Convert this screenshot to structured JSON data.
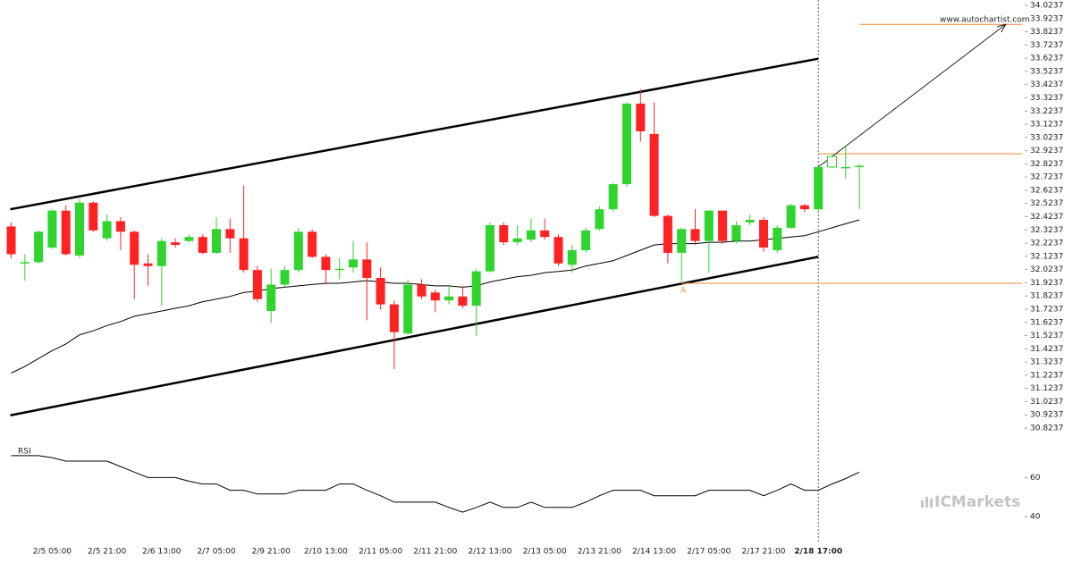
{
  "chart_data": {
    "type": "candlestick",
    "watermark": "www.autochartist.com",
    "brand": "ICMarkets",
    "up_color": "#2fd42f",
    "down_color": "#ff2222",
    "categories": [
      null,
      null,
      null,
      "2/5 05:00",
      null,
      null,
      null,
      "2/5 21:00",
      null,
      null,
      null,
      "2/6 13:00",
      null,
      null,
      null,
      "2/7 05:00",
      null,
      null,
      null,
      "2/9 21:00",
      null,
      null,
      null,
      "2/10 13:00",
      null,
      null,
      null,
      "2/11 05:00",
      null,
      null,
      null,
      "2/11 21:00",
      null,
      null,
      null,
      "2/12 13:00",
      null,
      null,
      null,
      "2/13 05:00",
      null,
      null,
      null,
      "2/13 21:00",
      null,
      null,
      null,
      "2/14 13:00",
      null,
      null,
      null,
      "2/17 05:00",
      null,
      null,
      null,
      "2/17 21:00",
      null,
      null,
      null,
      "2/18 17:00",
      null,
      null,
      null
    ],
    "current_index": 59,
    "open": [
      32.35,
      32.08,
      32.08,
      32.19,
      32.47,
      32.13,
      32.53,
      32.26,
      32.39,
      32.31,
      32.07,
      32.05,
      32.23,
      32.24,
      32.27,
      32.15,
      32.33,
      32.26,
      32.02,
      31.71,
      31.91,
      32.02,
      32.31,
      32.12,
      32.03,
      32.04,
      32.1,
      31.96,
      31.76,
      31.54,
      31.91,
      31.85,
      31.79,
      31.82,
      31.75,
      32.01,
      32.36,
      32.23,
      32.25,
      32.32,
      32.27,
      32.06,
      32.17,
      32.33,
      32.48,
      32.67,
      33.28,
      33.05,
      32.43,
      32.15,
      32.33,
      32.24,
      32.47,
      32.24,
      32.38,
      32.4,
      32.17,
      32.34,
      32.51,
      32.48,
      32.8,
      32.8,
      32.81
    ],
    "high": [
      32.38,
      32.14,
      32.32,
      32.48,
      32.51,
      32.56,
      32.54,
      32.44,
      32.42,
      32.32,
      32.14,
      32.26,
      32.26,
      32.29,
      32.29,
      32.42,
      32.41,
      32.66,
      32.05,
      32.03,
      32.05,
      32.34,
      32.33,
      32.14,
      32.11,
      32.24,
      32.23,
      32.04,
      31.79,
      31.95,
      31.95,
      31.87,
      31.91,
      31.9,
      32.03,
      32.38,
      32.38,
      32.36,
      32.41,
      32.41,
      32.29,
      32.21,
      32.34,
      32.5,
      32.68,
      33.29,
      33.39,
      33.29,
      32.44,
      32.34,
      32.48,
      32.47,
      32.47,
      32.39,
      32.44,
      32.42,
      32.36,
      32.52,
      32.52,
      32.81,
      32.89,
      32.95,
      32.82
    ],
    "low": [
      32.11,
      31.94,
      32.07,
      32.18,
      32.13,
      32.11,
      32.31,
      32.24,
      32.17,
      31.8,
      31.9,
      31.75,
      32.19,
      32.23,
      32.14,
      32.14,
      32.15,
      32.0,
      31.78,
      31.62,
      31.89,
      32.0,
      32.11,
      31.91,
      31.95,
      32.0,
      31.64,
      31.72,
      31.27,
      31.53,
      31.8,
      31.7,
      31.76,
      31.73,
      31.52,
      32.0,
      32.21,
      32.21,
      32.23,
      32.25,
      32.05,
      32.0,
      32.15,
      32.32,
      32.46,
      32.65,
      32.99,
      32.42,
      32.07,
      31.93,
      32.21,
      32.0,
      32.22,
      32.22,
      32.36,
      32.16,
      32.15,
      32.33,
      32.46,
      32.47,
      32.79,
      32.71,
      32.48
    ],
    "close": [
      32.14,
      32.08,
      32.31,
      32.47,
      32.14,
      32.53,
      32.32,
      32.39,
      32.31,
      32.06,
      32.05,
      32.24,
      32.21,
      32.27,
      32.15,
      32.33,
      32.26,
      32.02,
      31.8,
      31.91,
      32.02,
      32.31,
      32.12,
      32.02,
      32.03,
      32.1,
      31.96,
      31.76,
      31.55,
      31.91,
      31.82,
      31.79,
      31.82,
      31.75,
      32.01,
      32.36,
      32.23,
      32.26,
      32.32,
      32.27,
      32.07,
      32.17,
      32.32,
      32.48,
      32.67,
      33.28,
      33.07,
      32.43,
      32.15,
      32.33,
      32.24,
      32.47,
      32.24,
      32.36,
      32.4,
      32.19,
      32.34,
      32.51,
      32.48,
      32.8,
      32.88,
      32.8,
      32.81
    ],
    "moving_average": {
      "color": "#000000",
      "values": [
        31.24,
        31.29,
        31.35,
        31.41,
        31.46,
        31.53,
        31.56,
        31.6,
        31.63,
        31.67,
        31.69,
        31.71,
        31.73,
        31.75,
        31.78,
        31.8,
        31.82,
        31.85,
        31.86,
        31.88,
        31.89,
        31.9,
        31.91,
        31.92,
        31.92,
        31.93,
        31.94,
        31.93,
        31.92,
        31.92,
        31.91,
        31.9,
        31.9,
        31.89,
        31.9,
        31.93,
        31.95,
        31.97,
        31.98,
        32.0,
        32.01,
        32.02,
        32.05,
        32.07,
        32.09,
        32.13,
        32.17,
        32.21,
        32.22,
        32.22,
        32.22,
        32.23,
        32.23,
        32.24,
        32.24,
        32.25,
        32.26,
        32.27,
        32.28,
        32.31,
        32.34,
        32.37,
        32.4
      ]
    },
    "ylim": [
      30.8237,
      34.0237
    ],
    "yticks": [
      30.8237,
      30.9237,
      31.0237,
      31.1237,
      31.2237,
      31.3237,
      31.4237,
      31.5237,
      31.6237,
      31.7237,
      31.8237,
      31.9237,
      32.0237,
      32.1237,
      32.2237,
      32.3237,
      32.4237,
      32.5237,
      32.6237,
      32.7237,
      32.8237,
      32.9237,
      33.0237,
      33.1237,
      33.2237,
      33.3237,
      33.4237,
      33.5237,
      33.6237,
      33.7237,
      33.8237,
      33.9237,
      34.0237
    ],
    "channel": {
      "color": "#000000",
      "x": [
        0,
        59
      ],
      "upper": [
        32.48,
        33.62
      ],
      "lower": [
        30.92,
        32.12
      ]
    },
    "level_color": "#f0883a",
    "levels": [
      {
        "value": 33.88,
        "from": 62
      },
      {
        "value": 32.9,
        "from": 59
      },
      {
        "value": 31.92,
        "from": 49,
        "label": "A"
      }
    ],
    "forecast_arrow": {
      "x": [
        59,
        72.7
      ],
      "y": [
        32.8,
        33.88
      ]
    },
    "rsi": {
      "title": "RSI",
      "ylim": [
        30,
        78
      ],
      "yticks": [
        40,
        60
      ],
      "values": [
        71.2,
        71.2,
        71.2,
        70.2,
        68.4,
        68.4,
        68.4,
        68.4,
        65.6,
        62.8,
        60,
        60,
        60,
        58.1,
        56.7,
        56.7,
        53.5,
        53.5,
        51.6,
        51.6,
        51.6,
        53.5,
        53.5,
        53.5,
        56.7,
        56.7,
        53.5,
        50.7,
        47.4,
        47.4,
        47.4,
        47.4,
        44.7,
        42.3,
        44.7,
        47.4,
        44.7,
        44.7,
        47.4,
        44.7,
        44.7,
        44.7,
        47.4,
        50.7,
        53.5,
        53.5,
        53.5,
        50.7,
        50.7,
        50.7,
        50.7,
        53.5,
        53.5,
        53.5,
        53.5,
        50.7,
        53.5,
        56.7,
        53.5,
        53.5,
        56.7,
        59.5,
        62.8
      ]
    }
  }
}
